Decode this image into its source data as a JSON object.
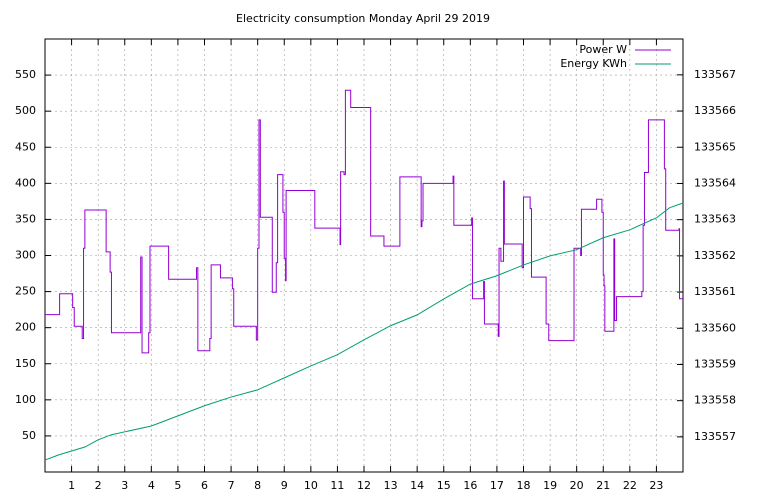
{
  "chart_data": {
    "type": "line",
    "title": "Electricity consumption Monday April 29 2019",
    "xlim": [
      0,
      24
    ],
    "xticks": [
      1,
      2,
      3,
      4,
      5,
      6,
      7,
      8,
      9,
      10,
      11,
      12,
      13,
      14,
      15,
      16,
      17,
      18,
      19,
      20,
      21,
      22,
      23
    ],
    "ylim": [
      0,
      600
    ],
    "yticks": [
      50,
      100,
      150,
      200,
      250,
      300,
      350,
      400,
      450,
      500,
      550
    ],
    "y2lim": [
      133556.03,
      133567.99
    ],
    "y2ticks": [
      133557,
      133558,
      133559,
      133560,
      133561,
      133562,
      133563,
      133564,
      133565,
      133566,
      133567
    ],
    "grid": true,
    "legend": "top-right",
    "series": [
      {
        "name": "Power W",
        "color": "#9400d3",
        "x": [
          0,
          0.55,
          0.55,
          1.04,
          1.04,
          1.1,
          1.1,
          1.4,
          1.4,
          1.45,
          1.45,
          1.5,
          1.5,
          2.3,
          2.3,
          2.45,
          2.45,
          2.5,
          2.5,
          3.6,
          3.6,
          3.65,
          3.65,
          3.9,
          3.9,
          3.95,
          3.95,
          4.65,
          4.65,
          5.7,
          5.7,
          5.75,
          5.75,
          6.2,
          6.2,
          6.25,
          6.25,
          6.6,
          6.6,
          7.05,
          7.05,
          7.1,
          7.1,
          7.95,
          7.95,
          8.0,
          8.0,
          8.05,
          8.05,
          8.1,
          8.1,
          8.55,
          8.55,
          8.7,
          8.7,
          8.75,
          8.75,
          8.95,
          8.95,
          9.0,
          9.0,
          9.05,
          9.05,
          9.07,
          9.07,
          10.15,
          10.15,
          11.1,
          11.1,
          11.12,
          11.12,
          11.25,
          11.25,
          11.3,
          11.3,
          11.5,
          11.5,
          12.25,
          12.25,
          12.75,
          12.75,
          13.35,
          13.35,
          14.15,
          14.15,
          14.18,
          14.18,
          14.22,
          14.22,
          15.35,
          15.35,
          15.38,
          15.38,
          16.05,
          16.05,
          16.08,
          16.08,
          16.5,
          16.5,
          16.53,
          16.53,
          17.05,
          17.05,
          17.08,
          17.08,
          17.15,
          17.15,
          17.25,
          17.25,
          17.28,
          17.28,
          17.95,
          17.95,
          18.0,
          18.0,
          18.25,
          18.25,
          18.3,
          18.3,
          18.85,
          18.85,
          18.95,
          18.95,
          19.9,
          19.9,
          20.15,
          20.15,
          20.18,
          20.18,
          20.75,
          20.75,
          20.95,
          20.95,
          21.0,
          21.0,
          21.03,
          21.03,
          21.06,
          21.06,
          21.4,
          21.4,
          21.43,
          21.43,
          21.5,
          21.5,
          22.45,
          22.45,
          22.5,
          22.5,
          22.55,
          22.55,
          22.7,
          22.7,
          23.3,
          23.3,
          23.35,
          23.35,
          23.85,
          23.85,
          23.87,
          23.87,
          24
        ],
        "values": [
          218,
          218,
          247,
          247,
          228,
          228,
          202,
          202,
          185,
          185,
          310,
          310,
          363,
          363,
          305,
          305,
          277,
          277,
          193,
          193,
          298,
          298,
          165,
          165,
          193,
          193,
          313,
          313,
          267,
          267,
          283,
          283,
          168,
          168,
          185,
          185,
          287,
          287,
          269,
          269,
          254,
          254,
          202,
          202,
          183,
          183,
          310,
          310,
          488,
          488,
          353,
          353,
          249,
          249,
          290,
          290,
          412,
          412,
          360,
          360,
          296,
          296,
          265,
          265,
          390,
          390,
          338,
          338,
          315,
          315,
          416,
          416,
          412,
          412,
          529,
          529,
          505,
          505,
          327,
          327,
          313,
          313,
          409,
          409,
          340,
          340,
          348,
          348,
          400,
          400,
          410,
          410,
          342,
          342,
          352,
          352,
          240,
          240,
          264,
          264,
          205,
          205,
          188,
          188,
          310,
          310,
          292,
          292,
          403,
          403,
          316,
          316,
          283,
          283,
          381,
          381,
          365,
          365,
          270,
          270,
          205,
          205,
          182,
          182,
          310,
          310,
          300,
          300,
          364,
          364,
          378,
          378,
          360,
          360,
          273,
          273,
          258,
          258,
          195,
          195,
          323,
          323,
          210,
          210,
          243,
          243,
          250,
          250,
          342,
          342,
          415,
          415,
          488,
          488,
          420,
          420,
          335,
          335,
          337,
          337,
          240,
          240
        ]
      },
      {
        "name": "Energy KWh",
        "color": "#009e73",
        "axis": "y2",
        "x": [
          0,
          0.5,
          1,
          1.5,
          2,
          2.5,
          3,
          4,
          5,
          6,
          7,
          8,
          9,
          10,
          11,
          12,
          13,
          14,
          15,
          16,
          17,
          18,
          19,
          20,
          21,
          22,
          23,
          23.5,
          24
        ],
        "values": [
          133556.36,
          133556.5,
          133556.61,
          133556.72,
          133556.92,
          133557.06,
          133557.14,
          133557.3,
          133557.58,
          133557.86,
          133558.1,
          133558.3,
          133558.63,
          133558.96,
          133559.27,
          133559.68,
          133560.07,
          133560.37,
          133560.81,
          133561.22,
          133561.45,
          133561.75,
          133562.0,
          133562.17,
          133562.5,
          133562.72,
          133563.05,
          133563.33,
          133563.46
        ]
      }
    ]
  }
}
